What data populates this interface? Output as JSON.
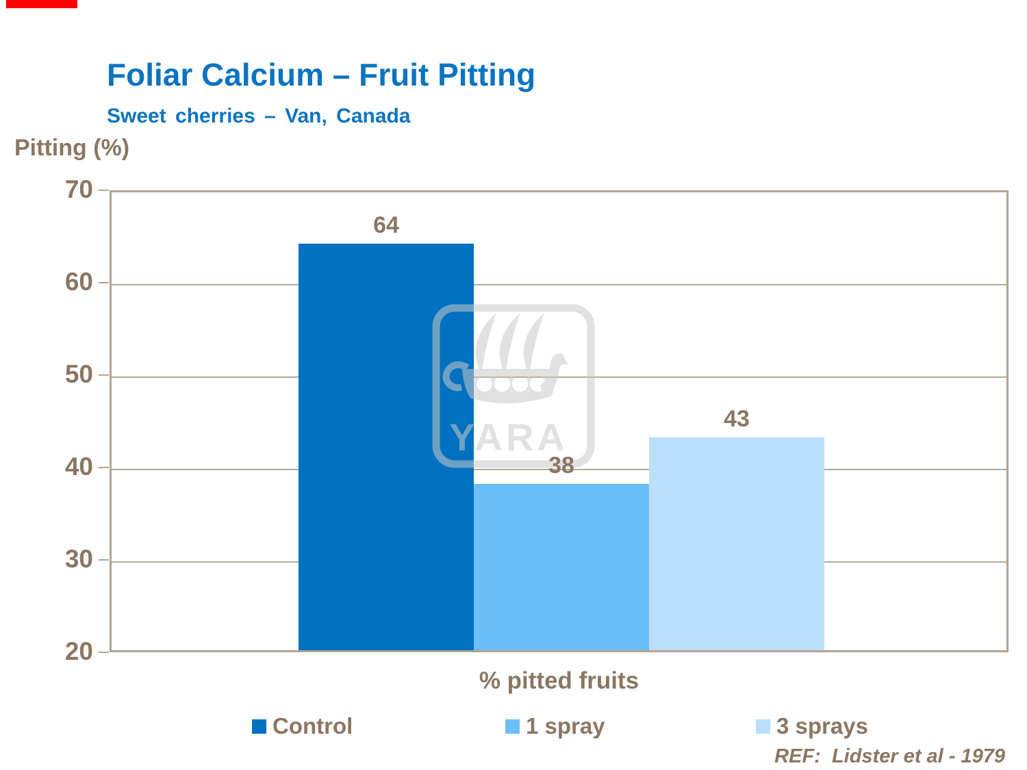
{
  "slide": {
    "title": "Foliar Calcium – Fruit Pitting",
    "subtitle": "Sweet cherries – Van, Canada",
    "reference": "REF:  Lidster et al - 1979",
    "accent_bar_color": "#fe0000"
  },
  "watermark": {
    "name": "yara-logo",
    "text": "YARA",
    "color": "#d2d2d2"
  },
  "chart_data": {
    "type": "bar",
    "title": "",
    "xlabel": "% pitted fruits",
    "ylabel": "Pitting (%)",
    "ylim": [
      20,
      70
    ],
    "yticks": [
      20,
      30,
      40,
      50,
      60,
      70
    ],
    "grid": true,
    "legend_position": "bottom",
    "categories": [
      "% pitted fruits"
    ],
    "series": [
      {
        "name": "Control",
        "values": [
          64
        ],
        "color": "#0070c0"
      },
      {
        "name": "1 spray",
        "values": [
          38
        ],
        "color": "#6cbefb"
      },
      {
        "name": "3 sprays",
        "values": [
          43
        ],
        "color": "#bbdefb"
      }
    ],
    "bar_value_labels": [
      64,
      38,
      43
    ],
    "text_color": "#8a7662",
    "axis_color": "#b1a496"
  }
}
